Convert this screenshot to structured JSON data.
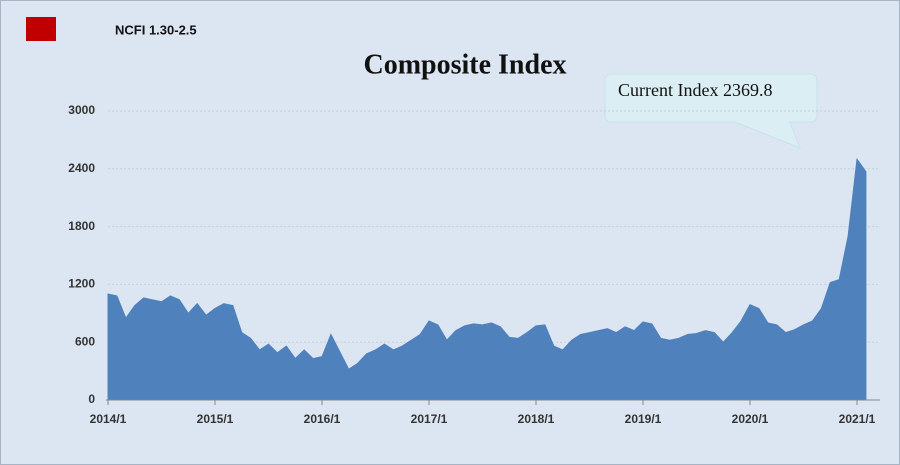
{
  "chart_data": {
    "type": "area",
    "title": "Composite Index",
    "annotation": "Current Index 2369.8",
    "legend_color": "#c00000",
    "categories": [
      "2014/1",
      null,
      null,
      null,
      null,
      null,
      null,
      null,
      null,
      null,
      null,
      null,
      "2015/1",
      null,
      null,
      null,
      null,
      null,
      null,
      null,
      null,
      null,
      null,
      null,
      "2016/1",
      null,
      null,
      null,
      null,
      null,
      null,
      null,
      null,
      null,
      null,
      null,
      "2017/1",
      null,
      null,
      null,
      null,
      null,
      null,
      null,
      null,
      null,
      null,
      null,
      "2018/1",
      null,
      null,
      null,
      null,
      null,
      null,
      null,
      null,
      null,
      null,
      null,
      "2019/1",
      null,
      null,
      null,
      null,
      null,
      null,
      null,
      null,
      null,
      null,
      null,
      "2020/1",
      null,
      null,
      null,
      null,
      null,
      null,
      null,
      null,
      null,
      null,
      null,
      "2021/1",
      null
    ],
    "series": [
      {
        "name": "NCFI 1.30-2.5",
        "color": "#4f81bd",
        "values": [
          1100,
          1080,
          850,
          980,
          1060,
          1040,
          1020,
          1080,
          1040,
          900,
          1000,
          880,
          950,
          1000,
          980,
          700,
          640,
          520,
          580,
          490,
          560,
          430,
          520,
          430,
          450,
          680,
          500,
          320,
          380,
          480,
          520,
          580,
          520,
          560,
          620,
          680,
          820,
          780,
          620,
          720,
          770,
          790,
          780,
          800,
          760,
          650,
          640,
          700,
          770,
          780,
          560,
          520,
          620,
          680,
          700,
          720,
          740,
          700,
          760,
          720,
          810,
          790,
          640,
          620,
          640,
          680,
          690,
          720,
          700,
          600,
          700,
          820,
          990,
          950,
          800,
          780,
          700,
          730,
          780,
          820,
          950,
          1220,
          1250,
          1700,
          2500,
          2369.8
        ]
      }
    ],
    "ylim": [
      0,
      3000
    ],
    "yticks": [
      0,
      600,
      1200,
      1800,
      2400,
      3000
    ],
    "grid": true
  }
}
